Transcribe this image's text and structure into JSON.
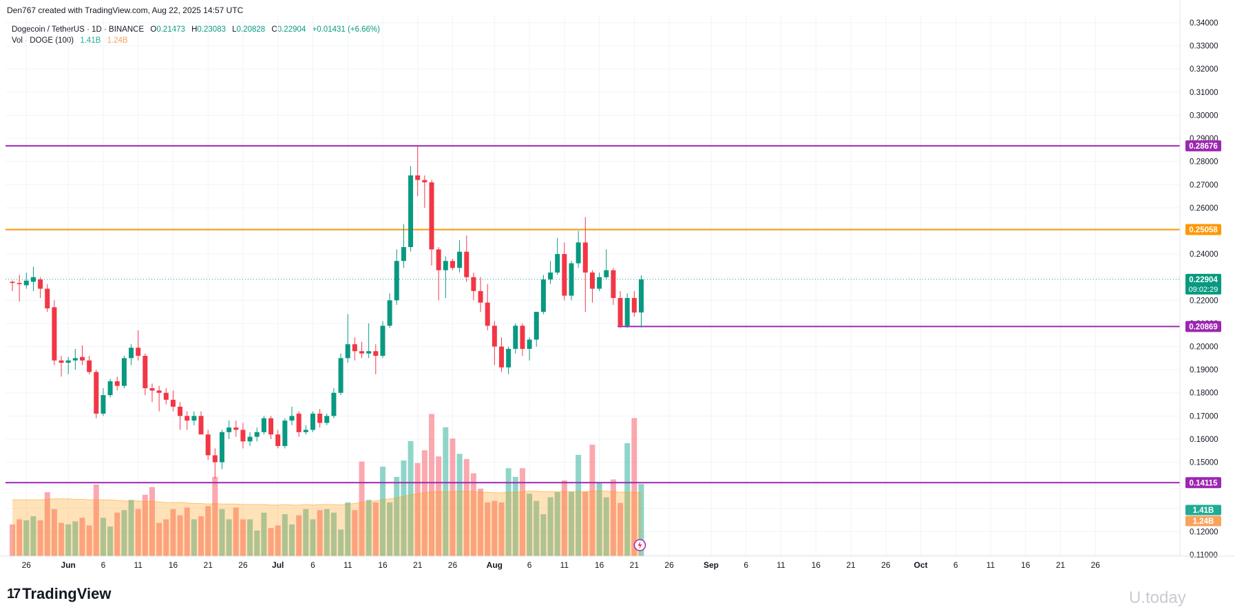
{
  "credit": "Den767 created with TradingView.com, Aug 22, 2025 14:57 UTC",
  "legend": {
    "symbol": "Dogecoin / TetherUS · 1D · BINANCE",
    "open_label": "O",
    "open": "0.21473",
    "high_label": "H",
    "high": "0.23083",
    "low_label": "L",
    "low": "0.20828",
    "close_label": "C",
    "close": "0.22904",
    "change": "+0.01431 (+6.66%)",
    "vol_label": "Vol · DOGE (100)",
    "vol_value": "1.41B",
    "vol_ma": "1.24B"
  },
  "brand": {
    "logo": "17",
    "name": "TradingView"
  },
  "watermark": "U.today",
  "colors": {
    "up": "#089981",
    "down": "#f23645",
    "purple": "#9c27b0",
    "orange": "#ff9800",
    "vol_ma": "#f7a35c"
  },
  "chart_data": {
    "type": "candlestick",
    "y_axis": {
      "min": 0.11,
      "max": 0.34,
      "position": "right",
      "ticks": [
        "0.11000",
        "0.12000",
        "0.13000",
        "0.14000",
        "0.15000",
        "0.16000",
        "0.17000",
        "0.18000",
        "0.19000",
        "0.20000",
        "0.21000",
        "0.22000",
        "0.23000",
        "0.24000",
        "0.25000",
        "0.26000",
        "0.27000",
        "0.28000",
        "0.29000",
        "0.30000",
        "0.31000",
        "0.32000",
        "0.33000",
        "0.34000"
      ]
    },
    "x_axis": {
      "start_date": "2025-05-24",
      "end_date": "2025-10-26",
      "ticks": [
        {
          "label": "26",
          "date": "2025-05-26"
        },
        {
          "label": "Jun",
          "date": "2025-06-01"
        },
        {
          "label": "6",
          "date": "2025-06-06"
        },
        {
          "label": "11",
          "date": "2025-06-11"
        },
        {
          "label": "16",
          "date": "2025-06-16"
        },
        {
          "label": "21",
          "date": "2025-06-21"
        },
        {
          "label": "26",
          "date": "2025-06-26"
        },
        {
          "label": "Jul",
          "date": "2025-07-01"
        },
        {
          "label": "6",
          "date": "2025-07-06"
        },
        {
          "label": "11",
          "date": "2025-07-11"
        },
        {
          "label": "16",
          "date": "2025-07-16"
        },
        {
          "label": "21",
          "date": "2025-07-21"
        },
        {
          "label": "26",
          "date": "2025-07-26"
        },
        {
          "label": "Aug",
          "date": "2025-08-01"
        },
        {
          "label": "6",
          "date": "2025-08-06"
        },
        {
          "label": "11",
          "date": "2025-08-11"
        },
        {
          "label": "16",
          "date": "2025-08-16"
        },
        {
          "label": "21",
          "date": "2025-08-21"
        },
        {
          "label": "26",
          "date": "2025-08-26"
        },
        {
          "label": "Sep",
          "date": "2025-09-01"
        },
        {
          "label": "6",
          "date": "2025-09-06"
        },
        {
          "label": "11",
          "date": "2025-09-11"
        },
        {
          "label": "16",
          "date": "2025-09-16"
        },
        {
          "label": "21",
          "date": "2025-09-21"
        },
        {
          "label": "26",
          "date": "2025-09-26"
        },
        {
          "label": "Oct",
          "date": "2025-10-01"
        },
        {
          "label": "6",
          "date": "2025-10-06"
        },
        {
          "label": "11",
          "date": "2025-10-11"
        },
        {
          "label": "16",
          "date": "2025-10-16"
        },
        {
          "label": "21",
          "date": "2025-10-21"
        },
        {
          "label": "26",
          "date": "2025-10-26"
        }
      ]
    },
    "candles": [
      {
        "date": "2025-05-24",
        "o": 0.228,
        "h": 0.2285,
        "l": 0.224,
        "c": 0.2275
      },
      {
        "date": "2025-05-25",
        "o": 0.2275,
        "h": 0.231,
        "l": 0.2195,
        "c": 0.227
      },
      {
        "date": "2025-05-26",
        "o": 0.2265,
        "h": 0.232,
        "l": 0.225,
        "c": 0.2285
      },
      {
        "date": "2025-05-27",
        "o": 0.228,
        "h": 0.2345,
        "l": 0.224,
        "c": 0.23
      },
      {
        "date": "2025-05-28",
        "o": 0.229,
        "h": 0.23,
        "l": 0.221,
        "c": 0.225
      },
      {
        "date": "2025-05-29",
        "o": 0.225,
        "h": 0.227,
        "l": 0.215,
        "c": 0.2165
      },
      {
        "date": "2025-05-30",
        "o": 0.217,
        "h": 0.22,
        "l": 0.192,
        "c": 0.194
      },
      {
        "date": "2025-05-31",
        "o": 0.194,
        "h": 0.196,
        "l": 0.187,
        "c": 0.193
      },
      {
        "date": "2025-06-01",
        "o": 0.193,
        "h": 0.1955,
        "l": 0.188,
        "c": 0.194
      },
      {
        "date": "2025-06-02",
        "o": 0.194,
        "h": 0.199,
        "l": 0.19,
        "c": 0.195
      },
      {
        "date": "2025-06-03",
        "o": 0.1955,
        "h": 0.2005,
        "l": 0.192,
        "c": 0.194
      },
      {
        "date": "2025-06-04",
        "o": 0.194,
        "h": 0.196,
        "l": 0.188,
        "c": 0.189
      },
      {
        "date": "2025-06-05",
        "o": 0.189,
        "h": 0.19,
        "l": 0.169,
        "c": 0.171
      },
      {
        "date": "2025-06-06",
        "o": 0.171,
        "h": 0.182,
        "l": 0.17,
        "c": 0.179
      },
      {
        "date": "2025-06-07",
        "o": 0.179,
        "h": 0.186,
        "l": 0.178,
        "c": 0.185
      },
      {
        "date": "2025-06-08",
        "o": 0.185,
        "h": 0.187,
        "l": 0.181,
        "c": 0.183
      },
      {
        "date": "2025-06-09",
        "o": 0.183,
        "h": 0.196,
        "l": 0.182,
        "c": 0.195
      },
      {
        "date": "2025-06-10",
        "o": 0.195,
        "h": 0.201,
        "l": 0.192,
        "c": 0.1995
      },
      {
        "date": "2025-06-11",
        "o": 0.1995,
        "h": 0.207,
        "l": 0.194,
        "c": 0.196
      },
      {
        "date": "2025-06-12",
        "o": 0.196,
        "h": 0.197,
        "l": 0.179,
        "c": 0.182
      },
      {
        "date": "2025-06-13",
        "o": 0.182,
        "h": 0.184,
        "l": 0.176,
        "c": 0.181
      },
      {
        "date": "2025-06-14",
        "o": 0.181,
        "h": 0.183,
        "l": 0.172,
        "c": 0.18
      },
      {
        "date": "2025-06-15",
        "o": 0.18,
        "h": 0.182,
        "l": 0.175,
        "c": 0.177
      },
      {
        "date": "2025-06-16",
        "o": 0.177,
        "h": 0.181,
        "l": 0.172,
        "c": 0.174
      },
      {
        "date": "2025-06-17",
        "o": 0.174,
        "h": 0.176,
        "l": 0.164,
        "c": 0.17
      },
      {
        "date": "2025-06-18",
        "o": 0.17,
        "h": 0.172,
        "l": 0.164,
        "c": 0.168
      },
      {
        "date": "2025-06-19",
        "o": 0.168,
        "h": 0.172,
        "l": 0.166,
        "c": 0.17
      },
      {
        "date": "2025-06-20",
        "o": 0.17,
        "h": 0.172,
        "l": 0.163,
        "c": 0.162
      },
      {
        "date": "2025-06-21",
        "o": 0.162,
        "h": 0.164,
        "l": 0.151,
        "c": 0.153
      },
      {
        "date": "2025-06-22",
        "o": 0.153,
        "h": 0.156,
        "l": 0.143,
        "c": 0.15
      },
      {
        "date": "2025-06-23",
        "o": 0.15,
        "h": 0.164,
        "l": 0.147,
        "c": 0.163
      },
      {
        "date": "2025-06-24",
        "o": 0.163,
        "h": 0.168,
        "l": 0.16,
        "c": 0.165
      },
      {
        "date": "2025-06-25",
        "o": 0.165,
        "h": 0.168,
        "l": 0.161,
        "c": 0.164
      },
      {
        "date": "2025-06-26",
        "o": 0.164,
        "h": 0.167,
        "l": 0.156,
        "c": 0.159
      },
      {
        "date": "2025-06-27",
        "o": 0.159,
        "h": 0.163,
        "l": 0.157,
        "c": 0.161
      },
      {
        "date": "2025-06-28",
        "o": 0.161,
        "h": 0.165,
        "l": 0.159,
        "c": 0.163
      },
      {
        "date": "2025-06-29",
        "o": 0.163,
        "h": 0.17,
        "l": 0.162,
        "c": 0.169
      },
      {
        "date": "2025-06-30",
        "o": 0.169,
        "h": 0.17,
        "l": 0.16,
        "c": 0.162
      },
      {
        "date": "2025-07-01",
        "o": 0.162,
        "h": 0.164,
        "l": 0.156,
        "c": 0.157
      },
      {
        "date": "2025-07-02",
        "o": 0.157,
        "h": 0.169,
        "l": 0.156,
        "c": 0.168
      },
      {
        "date": "2025-07-03",
        "o": 0.168,
        "h": 0.174,
        "l": 0.166,
        "c": 0.17
      },
      {
        "date": "2025-07-04",
        "o": 0.171,
        "h": 0.172,
        "l": 0.161,
        "c": 0.163
      },
      {
        "date": "2025-07-05",
        "o": 0.163,
        "h": 0.166,
        "l": 0.162,
        "c": 0.164
      },
      {
        "date": "2025-07-06",
        "o": 0.164,
        "h": 0.172,
        "l": 0.163,
        "c": 0.171
      },
      {
        "date": "2025-07-07",
        "o": 0.171,
        "h": 0.173,
        "l": 0.165,
        "c": 0.167
      },
      {
        "date": "2025-07-08",
        "o": 0.167,
        "h": 0.171,
        "l": 0.166,
        "c": 0.17
      },
      {
        "date": "2025-07-09",
        "o": 0.17,
        "h": 0.182,
        "l": 0.169,
        "c": 0.18
      },
      {
        "date": "2025-07-10",
        "o": 0.18,
        "h": 0.197,
        "l": 0.179,
        "c": 0.195
      },
      {
        "date": "2025-07-11",
        "o": 0.195,
        "h": 0.214,
        "l": 0.193,
        "c": 0.201
      },
      {
        "date": "2025-07-12",
        "o": 0.201,
        "h": 0.204,
        "l": 0.194,
        "c": 0.198
      },
      {
        "date": "2025-07-13",
        "o": 0.198,
        "h": 0.202,
        "l": 0.195,
        "c": 0.197
      },
      {
        "date": "2025-07-14",
        "o": 0.197,
        "h": 0.21,
        "l": 0.195,
        "c": 0.198
      },
      {
        "date": "2025-07-15",
        "o": 0.198,
        "h": 0.201,
        "l": 0.188,
        "c": 0.196
      },
      {
        "date": "2025-07-16",
        "o": 0.196,
        "h": 0.211,
        "l": 0.195,
        "c": 0.209
      },
      {
        "date": "2025-07-17",
        "o": 0.209,
        "h": 0.223,
        "l": 0.208,
        "c": 0.22
      },
      {
        "date": "2025-07-18",
        "o": 0.22,
        "h": 0.242,
        "l": 0.218,
        "c": 0.237
      },
      {
        "date": "2025-07-19",
        "o": 0.237,
        "h": 0.253,
        "l": 0.234,
        "c": 0.243
      },
      {
        "date": "2025-07-20",
        "o": 0.243,
        "h": 0.278,
        "l": 0.241,
        "c": 0.274
      },
      {
        "date": "2025-07-21",
        "o": 0.274,
        "h": 0.287,
        "l": 0.265,
        "c": 0.272
      },
      {
        "date": "2025-07-22",
        "o": 0.272,
        "h": 0.274,
        "l": 0.26,
        "c": 0.271
      },
      {
        "date": "2025-07-23",
        "o": 0.271,
        "h": 0.272,
        "l": 0.235,
        "c": 0.242
      },
      {
        "date": "2025-07-24",
        "o": 0.242,
        "h": 0.243,
        "l": 0.22,
        "c": 0.233
      },
      {
        "date": "2025-07-25",
        "o": 0.233,
        "h": 0.239,
        "l": 0.221,
        "c": 0.237
      },
      {
        "date": "2025-07-26",
        "o": 0.237,
        "h": 0.238,
        "l": 0.233,
        "c": 0.234
      },
      {
        "date": "2025-07-27",
        "o": 0.234,
        "h": 0.246,
        "l": 0.232,
        "c": 0.241
      },
      {
        "date": "2025-07-28",
        "o": 0.241,
        "h": 0.248,
        "l": 0.228,
        "c": 0.23
      },
      {
        "date": "2025-07-29",
        "o": 0.23,
        "h": 0.232,
        "l": 0.22,
        "c": 0.224
      },
      {
        "date": "2025-07-30",
        "o": 0.224,
        "h": 0.23,
        "l": 0.215,
        "c": 0.219
      },
      {
        "date": "2025-07-31",
        "o": 0.219,
        "h": 0.227,
        "l": 0.207,
        "c": 0.209
      },
      {
        "date": "2025-08-01",
        "o": 0.209,
        "h": 0.211,
        "l": 0.192,
        "c": 0.2
      },
      {
        "date": "2025-08-02",
        "o": 0.2,
        "h": 0.204,
        "l": 0.189,
        "c": 0.191
      },
      {
        "date": "2025-08-03",
        "o": 0.191,
        "h": 0.2,
        "l": 0.188,
        "c": 0.199
      },
      {
        "date": "2025-08-04",
        "o": 0.199,
        "h": 0.21,
        "l": 0.197,
        "c": 0.209
      },
      {
        "date": "2025-08-05",
        "o": 0.209,
        "h": 0.21,
        "l": 0.196,
        "c": 0.199
      },
      {
        "date": "2025-08-06",
        "o": 0.199,
        "h": 0.204,
        "l": 0.194,
        "c": 0.203
      },
      {
        "date": "2025-08-07",
        "o": 0.203,
        "h": 0.215,
        "l": 0.2,
        "c": 0.215
      },
      {
        "date": "2025-08-08",
        "o": 0.215,
        "h": 0.231,
        "l": 0.214,
        "c": 0.229
      },
      {
        "date": "2025-08-09",
        "o": 0.229,
        "h": 0.237,
        "l": 0.227,
        "c": 0.232
      },
      {
        "date": "2025-08-10",
        "o": 0.232,
        "h": 0.247,
        "l": 0.231,
        "c": 0.24
      },
      {
        "date": "2025-08-11",
        "o": 0.24,
        "h": 0.245,
        "l": 0.22,
        "c": 0.222
      },
      {
        "date": "2025-08-12",
        "o": 0.222,
        "h": 0.237,
        "l": 0.22,
        "c": 0.236
      },
      {
        "date": "2025-08-13",
        "o": 0.236,
        "h": 0.25,
        "l": 0.234,
        "c": 0.245
      },
      {
        "date": "2025-08-14",
        "o": 0.245,
        "h": 0.256,
        "l": 0.215,
        "c": 0.232
      },
      {
        "date": "2025-08-15",
        "o": 0.232,
        "h": 0.233,
        "l": 0.219,
        "c": 0.225
      },
      {
        "date": "2025-08-16",
        "o": 0.225,
        "h": 0.232,
        "l": 0.224,
        "c": 0.23
      },
      {
        "date": "2025-08-17",
        "o": 0.23,
        "h": 0.242,
        "l": 0.229,
        "c": 0.233
      },
      {
        "date": "2025-08-18",
        "o": 0.233,
        "h": 0.234,
        "l": 0.218,
        "c": 0.221
      },
      {
        "date": "2025-08-19",
        "o": 0.221,
        "h": 0.224,
        "l": 0.208,
        "c": 0.209
      },
      {
        "date": "2025-08-20",
        "o": 0.209,
        "h": 0.223,
        "l": 0.208,
        "c": 0.221
      },
      {
        "date": "2025-08-21",
        "o": 0.221,
        "h": 0.224,
        "l": 0.213,
        "c": 0.2147
      },
      {
        "date": "2025-08-22",
        "o": 0.21473,
        "h": 0.23083,
        "l": 0.20828,
        "c": 0.22904
      }
    ],
    "volume": [
      0.62,
      0.72,
      0.7,
      0.78,
      0.7,
      1.25,
      0.92,
      0.65,
      0.62,
      0.68,
      0.75,
      0.6,
      1.4,
      0.75,
      0.58,
      0.85,
      0.9,
      1.1,
      0.92,
      1.2,
      1.35,
      0.65,
      0.72,
      0.92,
      0.8,
      0.95,
      0.72,
      0.78,
      0.98,
      1.55,
      0.92,
      0.72,
      0.95,
      0.72,
      0.72,
      0.5,
      0.85,
      0.55,
      0.6,
      0.82,
      0.62,
      0.8,
      0.92,
      0.72,
      0.9,
      0.92,
      0.85,
      0.52,
      1.05,
      0.9,
      1.85,
      1.1,
      1.05,
      1.75,
      1.05,
      1.55,
      1.87,
      2.25,
      1.82,
      2.07,
      2.78,
      1.95,
      2.52,
      2.3,
      2.0,
      1.9,
      1.62,
      1.32,
      1.05,
      1.08,
      1.05,
      1.72,
      1.55,
      1.72,
      1.22,
      1.08,
      0.82,
      1.15,
      1.25,
      1.48,
      1.26,
      1.98,
      1.26,
      2.18,
      1.43,
      1.15,
      1.5,
      1.04,
      2.21,
      2.7,
      1.41
    ],
    "volume_ma": [
      1.1,
      1.1,
      1.1,
      1.1,
      1.1,
      1.11,
      1.12,
      1.12,
      1.12,
      1.11,
      1.11,
      1.1,
      1.1,
      1.1,
      1.1,
      1.09,
      1.08,
      1.08,
      1.08,
      1.07,
      1.07,
      1.06,
      1.05,
      1.05,
      1.05,
      1.04,
      1.03,
      1.03,
      1.02,
      1.03,
      1.02,
      1.02,
      1.02,
      1.01,
      1.01,
      1.01,
      1.01,
      1.0,
      1.0,
      1.01,
      1.0,
      1.0,
      1.01,
      1.0,
      1.01,
      1.01,
      1.01,
      1.0,
      1.02,
      1.03,
      1.05,
      1.07,
      1.08,
      1.1,
      1.12,
      1.14,
      1.17,
      1.2,
      1.22,
      1.24,
      1.26,
      1.26,
      1.26,
      1.26,
      1.27,
      1.27,
      1.26,
      1.25,
      1.25,
      1.24,
      1.24,
      1.25,
      1.25,
      1.26,
      1.27,
      1.27,
      1.26,
      1.26,
      1.26,
      1.26,
      1.26,
      1.26,
      1.26,
      1.27,
      1.27,
      1.27,
      1.26,
      1.25,
      1.25,
      1.25,
      1.24
    ],
    "horizontal_lines": [
      {
        "price": 0.28676,
        "label": "0.28676",
        "color": "#9c27b0"
      },
      {
        "price": 0.25058,
        "label": "0.25058",
        "color": "#ff9800"
      },
      {
        "price": 0.20869,
        "label": "0.20869",
        "color": "#9c27b0",
        "start_date": "2025-08-19"
      },
      {
        "price": 0.14115,
        "label": "0.14115",
        "color": "#9c27b0"
      }
    ],
    "current_price": {
      "price": 0.22904,
      "label": "0.22904",
      "countdown": "09:02:29",
      "color": "#089981"
    },
    "volume_tags": [
      {
        "label": "1.41B",
        "color": "#22ab94"
      },
      {
        "label": "1.24B",
        "color": "#f7a35c"
      }
    ],
    "grid": true
  }
}
